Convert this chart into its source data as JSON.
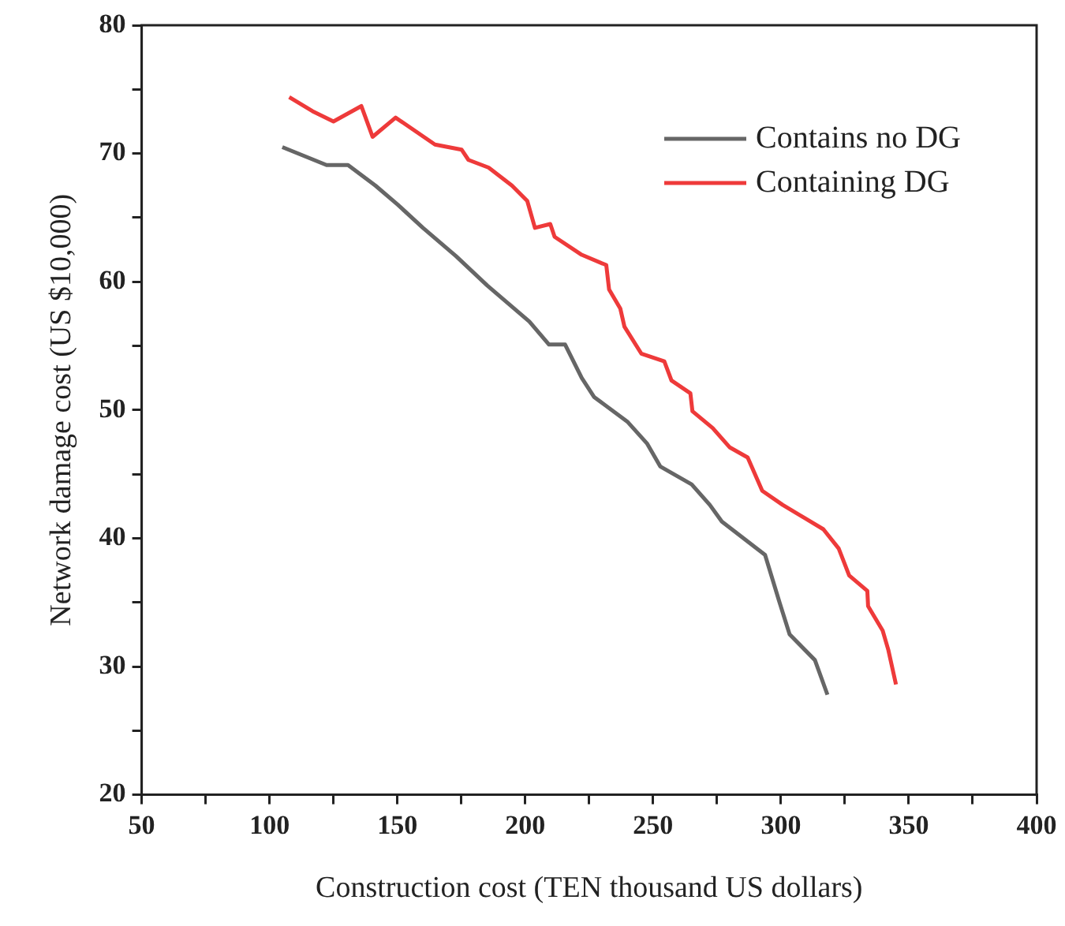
{
  "chart_data": {
    "type": "line",
    "xlabel": "Construction cost (TEN thousand US dollars)",
    "ylabel": "Network damage cost (US $10,000)",
    "xlim": [
      50,
      400
    ],
    "ylim": [
      20,
      80
    ],
    "xticks": [
      50,
      {
        "value": 75,
        "label": null
      },
      100,
      {
        "value": 125,
        "label": null
      },
      150,
      {
        "value": 175,
        "label": null
      },
      200,
      {
        "value": 225,
        "label": null
      },
      250,
      {
        "value": 275,
        "label": null
      },
      300,
      {
        "value": 325,
        "label": null
      },
      350,
      {
        "value": 375,
        "label": null
      },
      400
    ],
    "yticks": [
      20,
      {
        "value": 25,
        "label": null
      },
      30,
      {
        "value": 35,
        "label": null
      },
      40,
      {
        "value": 45,
        "label": null
      },
      50,
      {
        "value": 55,
        "label": null
      },
      60,
      {
        "value": 65,
        "label": null
      },
      70,
      {
        "value": 75,
        "label": null
      },
      80
    ],
    "grid": false,
    "legend": "top right",
    "marker": "none",
    "line_style": "solid",
    "series": [
      {
        "name": "Contains no DG",
        "color": "#666666",
        "x": [
          105,
          122.3,
          130.7,
          141.4,
          150.2,
          160,
          172.9,
          185.2,
          201.6,
          209.3,
          215.6,
          222.1,
          227,
          239.9,
          247.6,
          252.8,
          265.1,
          272.2,
          276.9,
          293.8,
          299.3,
          303.4,
          313.3,
          318.2
        ],
        "values": [
          70.5,
          69.1,
          69.1,
          67.5,
          66.0,
          64.2,
          62.0,
          59.7,
          56.9,
          55.1,
          55.1,
          52.5,
          51.0,
          49.1,
          47.4,
          45.6,
          44.2,
          42.6,
          41.3,
          38.7,
          35.1,
          32.5,
          30.5,
          27.8
        ]
      },
      {
        "name": "Containing DG",
        "color": "#ee3a3a",
        "x": [
          107.7,
          116.8,
          125,
          135.9,
          140.3,
          149.3,
          164.7,
          175.1,
          177.8,
          185.7,
          194.8,
          200.8,
          203.8,
          209.8,
          211.5,
          222.1,
          231.7,
          232.8,
          237.2,
          238.8,
          245.4,
          254.4,
          257.2,
          264.6,
          265.4,
          273.3,
          279.9,
          287,
          292.7,
          300.7,
          316.6,
          322.6,
          326.7,
          333.8,
          334.1,
          339.8,
          342,
          345
        ],
        "values": [
          74.4,
          73.3,
          72.5,
          73.7,
          71.3,
          72.8,
          70.7,
          70.3,
          69.5,
          68.9,
          67.5,
          66.3,
          64.2,
          64.5,
          63.5,
          62.1,
          61.3,
          59.4,
          57.9,
          56.5,
          54.4,
          53.8,
          52.3,
          51.3,
          49.9,
          48.6,
          47.1,
          46.3,
          43.7,
          42.6,
          40.7,
          39.2,
          37.1,
          35.9,
          34.7,
          32.8,
          31.3,
          28.6
        ]
      }
    ]
  }
}
